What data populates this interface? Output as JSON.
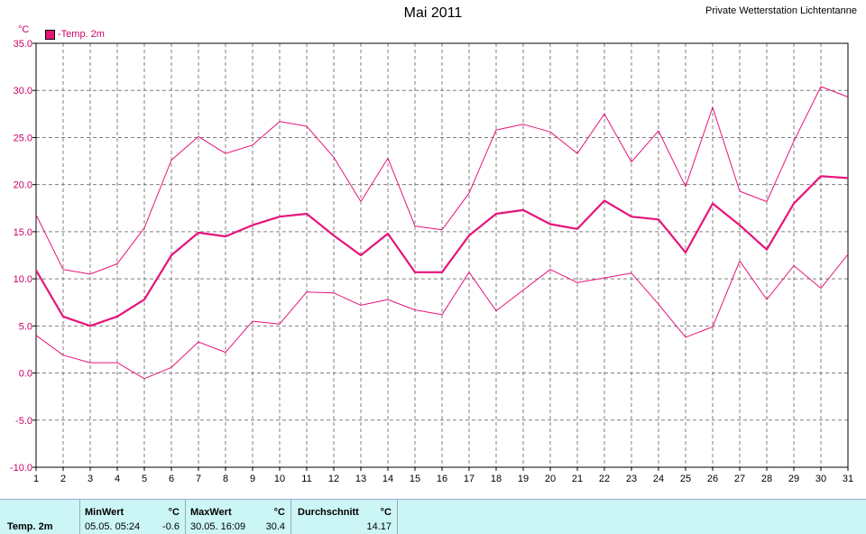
{
  "header": {
    "title": "Mai 2011",
    "station": "Private Wetterstation Lichtentanne",
    "unit": "°C",
    "legend": "-Temp. 2m"
  },
  "colors": {
    "series": "#e6147a",
    "grid": "#808080",
    "footer": "#ccf5f5"
  },
  "chart_data": {
    "type": "line",
    "title": "Mai 2011",
    "ylabel": "°C",
    "ylim": [
      -10,
      35
    ],
    "yticks": [
      "35.0",
      "30.0",
      "25.0",
      "20.0",
      "15.0",
      "10.0",
      "5.0",
      "0.0",
      "-5.0",
      "-10.0"
    ],
    "xlim": [
      1,
      31
    ],
    "grid": true,
    "legend_position": "top-left",
    "x": [
      1,
      2,
      3,
      4,
      5,
      6,
      7,
      8,
      9,
      10,
      11,
      12,
      13,
      14,
      15,
      16,
      17,
      18,
      19,
      20,
      21,
      22,
      23,
      24,
      25,
      26,
      27,
      28,
      29,
      30,
      31
    ],
    "series": [
      {
        "name": "-Temp. 2m",
        "role": "max",
        "values": [
          16.8,
          11.0,
          10.5,
          11.6,
          15.4,
          22.6,
          25.1,
          23.3,
          24.2,
          26.7,
          26.2,
          22.9,
          18.2,
          22.8,
          15.6,
          15.2,
          19.1,
          25.8,
          26.4,
          25.6,
          23.3,
          27.5,
          22.4,
          25.7,
          19.8,
          28.2,
          19.3,
          18.2,
          24.6,
          30.4,
          29.3
        ]
      },
      {
        "name": "",
        "role": "avg",
        "values": [
          10.9,
          6.0,
          5.0,
          6.0,
          7.8,
          12.5,
          14.9,
          14.5,
          15.7,
          16.6,
          16.9,
          14.6,
          12.5,
          14.8,
          10.7,
          10.7,
          14.6,
          16.9,
          17.3,
          15.8,
          15.3,
          18.3,
          16.6,
          16.3,
          12.8,
          18.0,
          15.7,
          13.1,
          18.0,
          20.9,
          20.7
        ]
      },
      {
        "name": "",
        "role": "min",
        "values": [
          4.0,
          1.9,
          1.1,
          1.1,
          -0.6,
          0.6,
          3.3,
          2.2,
          5.5,
          5.2,
          8.6,
          8.5,
          7.2,
          7.8,
          6.7,
          6.2,
          10.7,
          6.6,
          8.8,
          11.0,
          9.6,
          10.1,
          10.6,
          7.3,
          3.8,
          4.9,
          11.9,
          7.8,
          11.4,
          9.0,
          12.6
        ]
      }
    ]
  },
  "stats": {
    "row_label": "Temp. 2m",
    "min_label": "MinWert",
    "min_unit": "°C",
    "min_time": "05.05. 05:24",
    "min_value": "-0.6",
    "max_label": "MaxWert",
    "max_unit": "°C",
    "max_time": "30.05. 16:09",
    "max_value": "30.4",
    "avg_label": "Durchschnitt",
    "avg_unit": "°C",
    "avg_value": "14.17"
  }
}
